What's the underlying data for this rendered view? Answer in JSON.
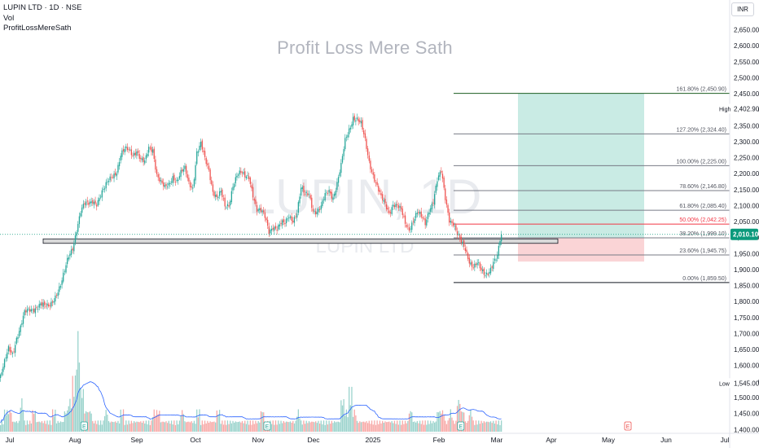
{
  "legend": {
    "symbol_line": "LUPIN LTD · 1D · NSE",
    "volume_label": "Vol",
    "indicator_label": "ProfitLossMereSath"
  },
  "watermark_text": "Profit Loss Mere Sath",
  "background_watermark": {
    "symbol": "LUPIN, 1D",
    "name": "LUPIN LTD"
  },
  "currency": "INR",
  "colors": {
    "up": "#26a69a",
    "down": "#ef5350",
    "vol_up": "#9bd3cc",
    "vol_down": "#f7a9a7",
    "vol_ma": "#2962ff",
    "price_tag": "#0b9a7c",
    "fib_line": "#787b86",
    "fib_mid": "#f23645",
    "target_zone": "#c9ebe4",
    "stop_zone": "#fad4d6",
    "support_band": "#d9d9d9"
  },
  "chart_data": {
    "type": "candlestick",
    "title": "LUPIN LTD · 1D · NSE",
    "y_axis": {
      "min": 1400,
      "max": 2650,
      "step": 50,
      "tick_labels": [
        "2,650.00",
        "2,600.00",
        "2,550.00",
        "2,500.00",
        "2,450.00",
        "2,400.00",
        "2,350.00",
        "2,300.00",
        "2,250.00",
        "2,200.00",
        "2,150.00",
        "2,100.00",
        "2,050.00",
        "2,000.00",
        "1,950.00",
        "1,900.00",
        "1,850.00",
        "1,800.00",
        "1,750.00",
        "1,700.00",
        "1,650.00",
        "1,600.00",
        "1,550.00",
        "1,500.00",
        "1,450.00",
        "1,400.00"
      ]
    },
    "x_axis": {
      "tick_labels": [
        "Jul",
        "Aug",
        "Sep",
        "Oct",
        "Nov",
        "Dec",
        "2025",
        "Feb",
        "Mar",
        "Apr",
        "May",
        "Jun",
        "Jul"
      ]
    },
    "price_labels": {
      "high": {
        "label": "High",
        "value": "2,402.90"
      },
      "low": {
        "label": "Low",
        "value": "1,545.00"
      },
      "last": {
        "value": "2,010.10"
      }
    },
    "fibonacci": [
      {
        "label": "161.80% (2,450.90)",
        "price": 2450.9
      },
      {
        "label": "127.20% (2,324.40)",
        "price": 2324.4
      },
      {
        "label": "100.00% (2,225.00)",
        "price": 2225.0
      },
      {
        "label": "78.60% (2,146.80)",
        "price": 2146.8
      },
      {
        "label": "61.80% (2,085.40)",
        "price": 2085.4
      },
      {
        "label": "50.00% (2,042.25)",
        "price": 2042.25
      },
      {
        "label": "38.20% (1,999.10)",
        "price": 1999.1
      },
      {
        "label": "23.60% (1,945.75)",
        "price": 1945.75
      },
      {
        "label": "0.00% (1,859.50)",
        "price": 1859.5
      }
    ],
    "support_band": {
      "top": 1996,
      "bottom": 1982
    },
    "position": {
      "entry": 2000,
      "target": 2450.9,
      "stop": 1925
    },
    "close_path": [
      [
        0,
        1565
      ],
      [
        3,
        1605
      ],
      [
        6,
        1650
      ],
      [
        9,
        1640
      ],
      [
        12,
        1690
      ],
      [
        15,
        1720
      ],
      [
        18,
        1760
      ],
      [
        21,
        1770
      ],
      [
        24,
        1778
      ],
      [
        27,
        1787
      ],
      [
        30,
        1792
      ],
      [
        33,
        1780
      ],
      [
        36,
        1782
      ],
      [
        39,
        1805
      ],
      [
        42,
        1830
      ],
      [
        45,
        1850
      ],
      [
        48,
        1890
      ],
      [
        51,
        1940
      ],
      [
        54,
        1972
      ],
      [
        57,
        2030
      ],
      [
        60,
        2080
      ],
      [
        63,
        2100
      ],
      [
        66,
        2105
      ],
      [
        69,
        2120
      ],
      [
        72,
        2110
      ],
      [
        75,
        2130
      ],
      [
        78,
        2150
      ],
      [
        81,
        2180
      ],
      [
        84,
        2200
      ],
      [
        87,
        2210
      ],
      [
        90,
        2255
      ],
      [
        93,
        2270
      ],
      [
        96,
        2275
      ],
      [
        99,
        2265
      ],
      [
        102,
        2275
      ],
      [
        105,
        2240
      ],
      [
        108,
        2230
      ],
      [
        111,
        2280
      ],
      [
        114,
        2280
      ],
      [
        117,
        2200
      ],
      [
        120,
        2170
      ],
      [
        123,
        2150
      ],
      [
        126,
        2165
      ],
      [
        129,
        2195
      ],
      [
        132,
        2180
      ],
      [
        135,
        2200
      ],
      [
        138,
        2210
      ],
      [
        141,
        2170
      ],
      [
        144,
        2160
      ],
      [
        147,
        2270
      ],
      [
        150,
        2290
      ],
      [
        153,
        2240
      ],
      [
        156,
        2210
      ],
      [
        159,
        2150
      ],
      [
        162,
        2130
      ],
      [
        165,
        2140
      ],
      [
        168,
        2090
      ],
      [
        171,
        2100
      ],
      [
        174,
        2170
      ],
      [
        177,
        2200
      ],
      [
        180,
        2200
      ],
      [
        183,
        2185
      ],
      [
        186,
        2190
      ],
      [
        189,
        2140
      ],
      [
        192,
        2090
      ],
      [
        195,
        2080
      ],
      [
        198,
        2060
      ],
      [
        201,
        2020
      ],
      [
        204,
        2040
      ],
      [
        207,
        2030
      ],
      [
        210,
        2040
      ],
      [
        213,
        2040
      ],
      [
        216,
        2070
      ],
      [
        219,
        2060
      ],
      [
        222,
        2080
      ],
      [
        225,
        2150
      ],
      [
        228,
        2130
      ],
      [
        231,
        2140
      ],
      [
        234,
        2090
      ],
      [
        237,
        2080
      ],
      [
        240,
        2090
      ],
      [
        243,
        2130
      ],
      [
        246,
        2150
      ],
      [
        249,
        2130
      ],
      [
        252,
        2170
      ],
      [
        255,
        2220
      ],
      [
        258,
        2300
      ],
      [
        261,
        2340
      ],
      [
        264,
        2380
      ],
      [
        267,
        2370
      ],
      [
        270,
        2350
      ],
      [
        273,
        2300
      ],
      [
        276,
        2240
      ],
      [
        279,
        2200
      ],
      [
        282,
        2160
      ],
      [
        285,
        2120
      ],
      [
        288,
        2100
      ],
      [
        291,
        2080
      ],
      [
        294,
        2110
      ],
      [
        297,
        2100
      ],
      [
        300,
        2080
      ],
      [
        303,
        2040
      ],
      [
        306,
        2030
      ],
      [
        309,
        2060
      ],
      [
        312,
        2080
      ],
      [
        315,
        2060
      ],
      [
        318,
        2040
      ],
      [
        321,
        2090
      ],
      [
        324,
        2120
      ],
      [
        327,
        2180
      ],
      [
        330,
        2200
      ],
      [
        333,
        2120
      ],
      [
        336,
        2060
      ],
      [
        339,
        2050
      ],
      [
        342,
        2010
      ],
      [
        345,
        1980
      ],
      [
        348,
        1960
      ],
      [
        351,
        1930
      ],
      [
        354,
        1915
      ],
      [
        357,
        1920
      ],
      [
        360,
        1890
      ],
      [
        363,
        1880
      ],
      [
        366,
        1900
      ],
      [
        369,
        1930
      ],
      [
        372,
        1940
      ],
      [
        375,
        2010
      ]
    ],
    "volume": [
      [
        0,
        1
      ],
      [
        3,
        2
      ],
      [
        6,
        2
      ],
      [
        9,
        1
      ],
      [
        12,
        1
      ],
      [
        15,
        3
      ],
      [
        18,
        1
      ],
      [
        21,
        1
      ],
      [
        24,
        2
      ],
      [
        27,
        1
      ],
      [
        30,
        1
      ],
      [
        33,
        1
      ],
      [
        36,
        1
      ],
      [
        39,
        2
      ],
      [
        42,
        1
      ],
      [
        45,
        1
      ],
      [
        48,
        2
      ],
      [
        51,
        3
      ],
      [
        54,
        5
      ],
      [
        57,
        9
      ],
      [
        60,
        4
      ],
      [
        63,
        2
      ],
      [
        66,
        2
      ],
      [
        69,
        1
      ],
      [
        72,
        1
      ],
      [
        75,
        1
      ],
      [
        78,
        2
      ],
      [
        81,
        1
      ],
      [
        84,
        1
      ],
      [
        87,
        1
      ],
      [
        90,
        2
      ],
      [
        93,
        1
      ],
      [
        96,
        1
      ],
      [
        99,
        1
      ],
      [
        102,
        1
      ],
      [
        105,
        1
      ],
      [
        108,
        1
      ],
      [
        111,
        1
      ],
      [
        114,
        2
      ],
      [
        117,
        2
      ],
      [
        120,
        1
      ],
      [
        123,
        1
      ],
      [
        126,
        1
      ],
      [
        129,
        1
      ],
      [
        132,
        1
      ],
      [
        135,
        2
      ],
      [
        138,
        1
      ],
      [
        141,
        1
      ],
      [
        144,
        1
      ],
      [
        147,
        2
      ],
      [
        150,
        1
      ],
      [
        153,
        1
      ],
      [
        156,
        1
      ],
      [
        159,
        1
      ],
      [
        162,
        2
      ],
      [
        165,
        1
      ],
      [
        168,
        1
      ],
      [
        171,
        1
      ],
      [
        174,
        1
      ],
      [
        177,
        1
      ],
      [
        180,
        1
      ],
      [
        183,
        1
      ],
      [
        186,
        1
      ],
      [
        189,
        1
      ],
      [
        192,
        1
      ],
      [
        195,
        2
      ],
      [
        198,
        1
      ],
      [
        201,
        1
      ],
      [
        204,
        1
      ],
      [
        207,
        1
      ],
      [
        210,
        1
      ],
      [
        213,
        1
      ],
      [
        216,
        1
      ],
      [
        219,
        1
      ],
      [
        222,
        2
      ],
      [
        225,
        1
      ],
      [
        228,
        1
      ],
      [
        231,
        1
      ],
      [
        234,
        1
      ],
      [
        237,
        1
      ],
      [
        240,
        1
      ],
      [
        243,
        1
      ],
      [
        246,
        1
      ],
      [
        249,
        1
      ],
      [
        252,
        1
      ],
      [
        255,
        3
      ],
      [
        258,
        2
      ],
      [
        261,
        4
      ],
      [
        264,
        2
      ],
      [
        267,
        1
      ],
      [
        270,
        1
      ],
      [
        273,
        1
      ],
      [
        276,
        1
      ],
      [
        279,
        1
      ],
      [
        282,
        1
      ],
      [
        285,
        1
      ],
      [
        288,
        1
      ],
      [
        291,
        1
      ],
      [
        294,
        1
      ],
      [
        297,
        1
      ],
      [
        300,
        1
      ],
      [
        303,
        1
      ],
      [
        306,
        2
      ],
      [
        309,
        1
      ],
      [
        312,
        1
      ],
      [
        315,
        1
      ],
      [
        318,
        1
      ],
      [
        321,
        1
      ],
      [
        324,
        1
      ],
      [
        327,
        2
      ],
      [
        330,
        2
      ],
      [
        333,
        1
      ],
      [
        336,
        2
      ],
      [
        339,
        1
      ],
      [
        342,
        3
      ],
      [
        345,
        2
      ],
      [
        348,
        1
      ],
      [
        351,
        2
      ],
      [
        354,
        1
      ],
      [
        357,
        1
      ],
      [
        360,
        1
      ],
      [
        363,
        1
      ],
      [
        366,
        1
      ],
      [
        369,
        1
      ],
      [
        372,
        1
      ],
      [
        375,
        1
      ]
    ]
  }
}
